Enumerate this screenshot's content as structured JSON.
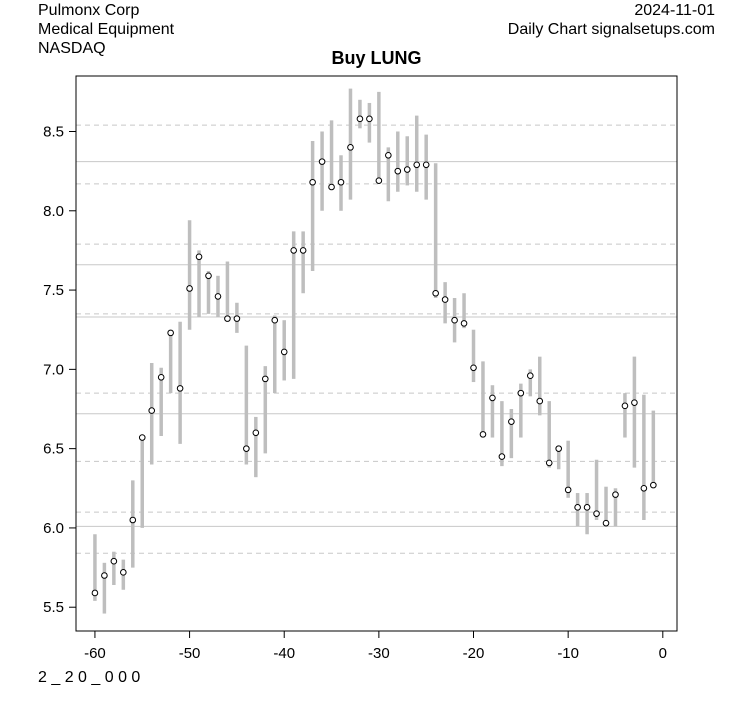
{
  "header": {
    "company": "Pulmonx Corp",
    "sector": "Medical Equipment",
    "exchange": "NASDAQ",
    "date": "2024-11-01",
    "source": "Daily Chart signalsetups.com"
  },
  "footer": {
    "code": "2 _ 2 0 _ 0 0 0"
  },
  "chart_data": {
    "type": "scatter",
    "title": "Buy LUNG",
    "xlabel": "",
    "ylabel": "",
    "xlim": [
      -62,
      1.5
    ],
    "ylim": [
      5.35,
      8.85
    ],
    "xticks": [
      -60,
      -50,
      -40,
      -30,
      -20,
      -10,
      0
    ],
    "yticks": [
      5.5,
      6.0,
      6.5,
      7.0,
      7.5,
      8.0,
      8.5
    ],
    "ytick_labels": [
      "5.5",
      "6.0",
      "6.5",
      "7.0",
      "7.5",
      "8.0",
      "8.5"
    ],
    "series": [
      {
        "x": [
          -60,
          -59,
          -58,
          -57,
          -56,
          -55,
          -54,
          -53,
          -52,
          -51,
          -50,
          -49,
          -48,
          -47,
          -46,
          -45,
          -44,
          -43,
          -42,
          -41,
          -40,
          -39,
          -38,
          -37,
          -36,
          -35,
          -34,
          -33,
          -32,
          -31,
          -30,
          -29,
          -28,
          -27,
          -26,
          -25,
          -24,
          -23,
          -22,
          -21,
          -20,
          -19,
          -18,
          -17,
          -16,
          -15,
          -14,
          -13,
          -12,
          -11,
          -10,
          -9,
          -8,
          -7,
          -6,
          -5,
          -4,
          -3,
          -2,
          -1
        ],
        "close": [
          5.59,
          5.7,
          5.79,
          5.72,
          6.05,
          6.57,
          6.74,
          6.95,
          7.23,
          6.88,
          7.51,
          7.71,
          7.59,
          7.46,
          7.32,
          7.32,
          6.5,
          6.6,
          6.94,
          7.31,
          7.11,
          7.75,
          7.75,
          8.18,
          8.31,
          8.15,
          8.18,
          8.4,
          8.58,
          8.58,
          8.19,
          8.35,
          8.25,
          8.26,
          8.29,
          8.29,
          7.48,
          7.44,
          7.31,
          7.29,
          7.01,
          6.59,
          6.82,
          6.45,
          6.67,
          6.85,
          6.96,
          6.8,
          6.41,
          6.5,
          6.24,
          6.13,
          6.13,
          6.09,
          6.03,
          6.21,
          6.77,
          6.79,
          6.25,
          6.27
        ],
        "high": [
          5.96,
          5.78,
          5.85,
          5.8,
          6.3,
          6.58,
          7.04,
          7.01,
          7.25,
          7.3,
          7.94,
          7.75,
          7.62,
          7.59,
          7.68,
          7.42,
          7.15,
          6.7,
          7.02,
          7.34,
          7.31,
          7.87,
          7.87,
          8.44,
          8.5,
          8.57,
          8.35,
          8.77,
          8.7,
          8.68,
          8.75,
          8.4,
          8.5,
          8.47,
          8.6,
          8.48,
          8.3,
          7.55,
          7.45,
          7.48,
          7.25,
          7.05,
          6.9,
          6.8,
          6.75,
          6.91,
          7.0,
          7.08,
          6.8,
          6.52,
          6.55,
          6.22,
          6.22,
          6.43,
          6.26,
          6.25,
          6.85,
          7.08,
          6.84,
          6.74
        ],
        "low": [
          5.54,
          5.46,
          5.64,
          5.61,
          5.75,
          6.0,
          6.4,
          6.58,
          6.85,
          6.53,
          7.25,
          7.33,
          7.35,
          7.33,
          7.31,
          7.23,
          6.4,
          6.32,
          6.47,
          6.85,
          6.93,
          6.94,
          7.48,
          7.62,
          8.0,
          8.15,
          8.0,
          8.07,
          8.52,
          8.43,
          8.18,
          8.06,
          8.12,
          8.16,
          8.12,
          8.07,
          7.45,
          7.29,
          7.17,
          7.26,
          6.92,
          6.58,
          6.57,
          6.39,
          6.44,
          6.57,
          6.83,
          6.71,
          6.38,
          6.37,
          6.19,
          6.01,
          5.96,
          6.05,
          6.02,
          6.01,
          6.57,
          6.38,
          6.05,
          6.26
        ]
      }
    ],
    "hlines_solid": [
      8.31,
      7.66,
      7.33,
      6.72,
      6.01
    ],
    "hlines_dashed": [
      8.54,
      8.17,
      7.79,
      7.35,
      6.85,
      6.42,
      6.1,
      5.84
    ],
    "grid": false,
    "legend": "none"
  }
}
